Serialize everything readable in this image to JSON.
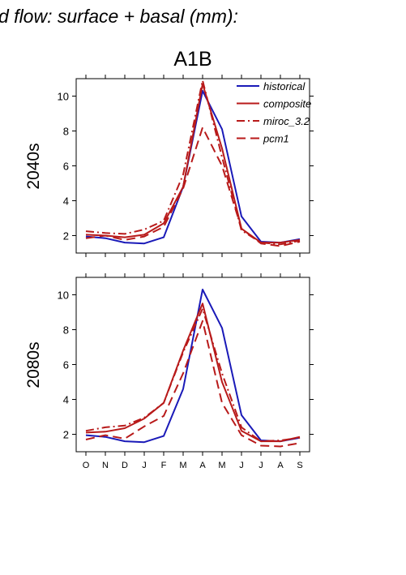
{
  "figure_title": "d flow: surface + basal (mm):",
  "colors": {
    "historical": "#1a1ab8",
    "future": "#b81a1a",
    "axis": "#000000"
  },
  "chart_data": [
    {
      "type": "line",
      "title": "A1B",
      "row_label": "2040s",
      "x": [
        "O",
        "N",
        "D",
        "J",
        "F",
        "M",
        "A",
        "M",
        "J",
        "J",
        "A",
        "S"
      ],
      "ylim": [
        1,
        11
      ],
      "yticks": [
        2,
        4,
        6,
        8,
        10
      ],
      "legend": "top-right",
      "grid": false,
      "series": [
        {
          "name": "historical",
          "style": "solid",
          "values": [
            1.95,
            1.85,
            1.6,
            1.55,
            1.9,
            4.8,
            10.3,
            8.1,
            3.1,
            1.65,
            1.6,
            1.8
          ]
        },
        {
          "name": "composite",
          "style": "solid",
          "values": [
            2.05,
            2.0,
            1.9,
            2.05,
            2.7,
            4.8,
            10.7,
            7.0,
            2.4,
            1.6,
            1.6,
            1.75
          ]
        },
        {
          "name": "miroc_3.2",
          "style": "dashdot",
          "values": [
            2.25,
            2.15,
            2.1,
            2.35,
            2.85,
            5.5,
            10.9,
            6.5,
            2.3,
            1.6,
            1.5,
            1.7
          ]
        },
        {
          "name": "pcm1",
          "style": "dashed",
          "values": [
            1.85,
            2.0,
            1.75,
            1.95,
            2.5,
            4.7,
            8.2,
            6.0,
            2.4,
            1.55,
            1.4,
            1.65
          ]
        }
      ]
    },
    {
      "type": "line",
      "title": "",
      "row_label": "2080s",
      "x": [
        "O",
        "N",
        "D",
        "J",
        "F",
        "M",
        "A",
        "M",
        "J",
        "J",
        "A",
        "S"
      ],
      "ylim": [
        1,
        11
      ],
      "yticks": [
        2,
        4,
        6,
        8,
        10
      ],
      "grid": false,
      "series": [
        {
          "name": "historical",
          "style": "solid",
          "values": [
            1.95,
            1.85,
            1.6,
            1.55,
            1.9,
            4.6,
            10.3,
            8.1,
            3.1,
            1.65,
            1.6,
            1.8
          ]
        },
        {
          "name": "composite",
          "style": "solid",
          "values": [
            2.1,
            2.15,
            2.35,
            2.9,
            3.8,
            6.8,
            9.5,
            5.0,
            2.2,
            1.6,
            1.6,
            1.85
          ]
        },
        {
          "name": "miroc_3.2",
          "style": "dashdot",
          "values": [
            2.2,
            2.4,
            2.5,
            2.95,
            3.8,
            6.7,
            9.2,
            5.5,
            2.4,
            1.6,
            1.65,
            1.8
          ]
        },
        {
          "name": "pcm1",
          "style": "dashed",
          "values": [
            1.7,
            1.95,
            1.75,
            2.45,
            3.05,
            5.5,
            8.5,
            3.8,
            1.95,
            1.35,
            1.3,
            1.5
          ]
        }
      ]
    }
  ]
}
